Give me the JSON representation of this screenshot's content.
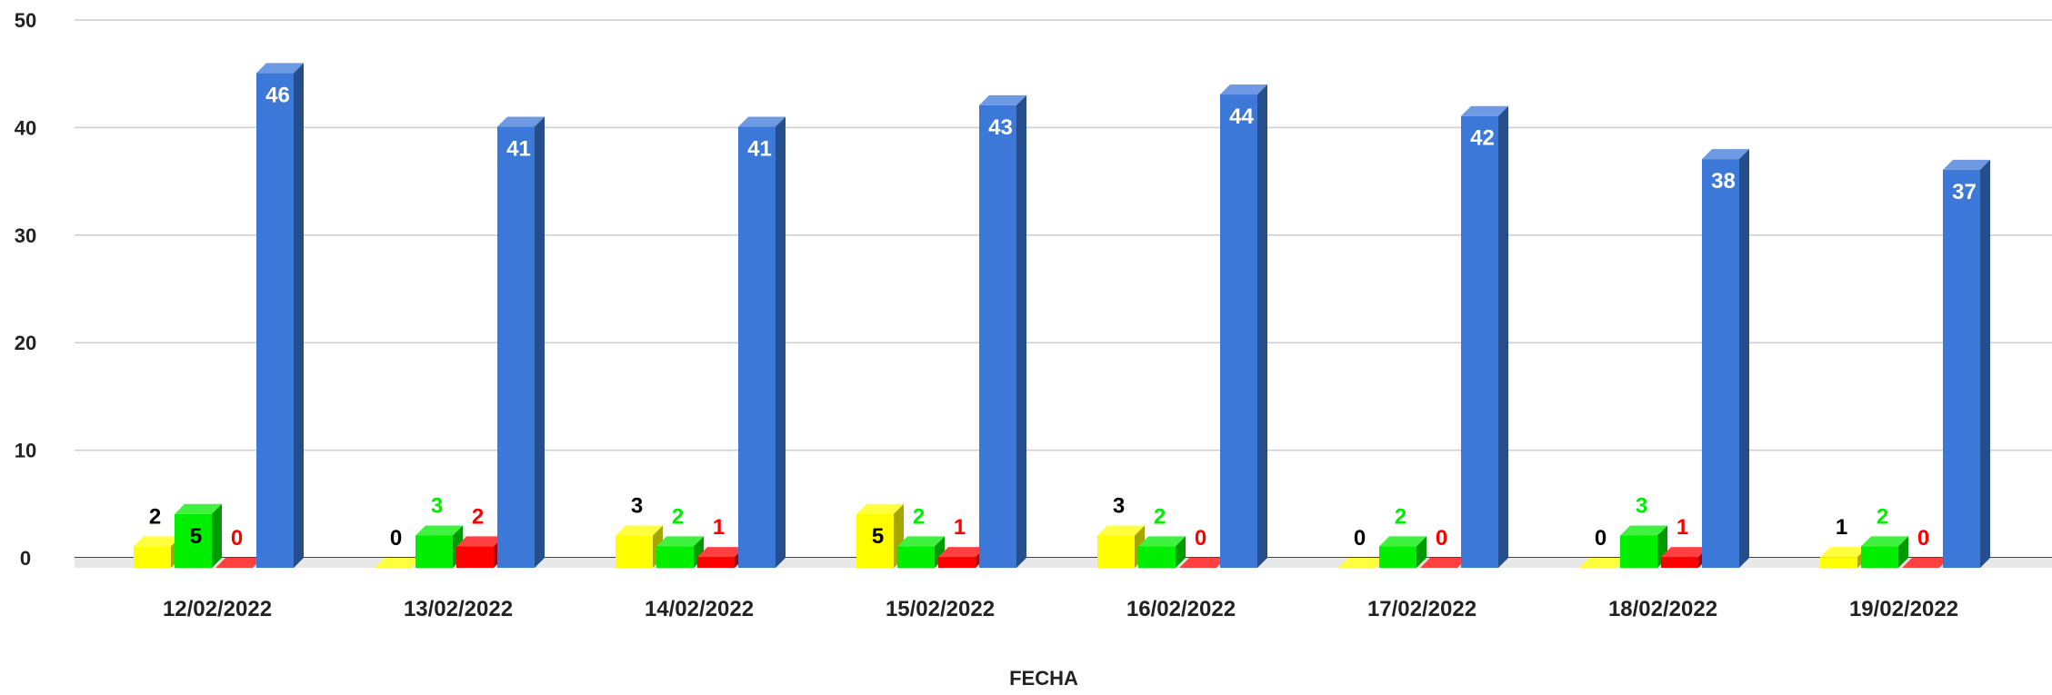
{
  "chart_data": {
    "type": "bar",
    "style": "3d-grouped",
    "xlabel": "FECHA",
    "ylabel": "",
    "ylim": [
      0,
      50
    ],
    "yticks": [
      0,
      10,
      20,
      30,
      40,
      50
    ],
    "grid": true,
    "legend": "none",
    "categories": [
      "12/02/2022",
      "13/02/2022",
      "14/02/2022",
      "15/02/2022",
      "16/02/2022",
      "17/02/2022",
      "18/02/2022",
      "19/02/2022"
    ],
    "series": [
      {
        "values": [
          2,
          0,
          3,
          5,
          3,
          0,
          0,
          1
        ],
        "color": "#ffff00",
        "label_color": "#000000",
        "label_position": "above"
      },
      {
        "values": [
          5,
          3,
          2,
          2,
          2,
          2,
          3,
          2
        ],
        "color": "#00ee00",
        "label_color": "#00ee00",
        "label_position": "above"
      },
      {
        "values": [
          0,
          2,
          1,
          1,
          0,
          0,
          1,
          0
        ],
        "color": "#ff0000",
        "label_color": "#ff0000",
        "label_position": "above"
      },
      {
        "values": [
          46,
          41,
          41,
          43,
          44,
          42,
          38,
          37
        ],
        "color": "#3c78d8",
        "label_color": "#ffffff",
        "label_position": "inside"
      }
    ],
    "label_overrides": [
      {
        "series": 1,
        "category": 0,
        "position": "inside",
        "color": "#000000"
      },
      {
        "series": 0,
        "category": 3,
        "position": "inside",
        "color": "#000000"
      }
    ]
  }
}
